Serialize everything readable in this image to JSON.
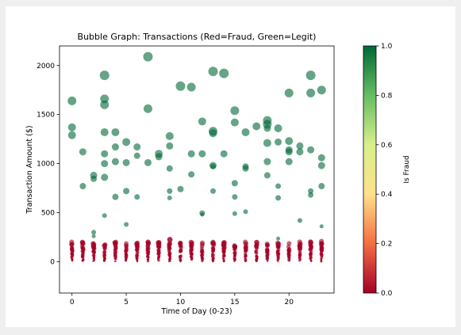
{
  "chart_data": {
    "type": "scatter",
    "title": "Bubble Graph: Transactions (Red=Fraud, Green=Legit)",
    "xlabel": "Time of Day (0-23)",
    "ylabel": "Transaction Amount ($)",
    "xlim": [
      -1.15,
      24.15
    ],
    "ylim": [
      -320,
      2200
    ],
    "xticks": [
      0,
      5,
      10,
      15,
      20
    ],
    "yticks": [
      0,
      500,
      1000,
      1500,
      2000
    ],
    "grid": false,
    "colorbar": {
      "label": "Is Fraud",
      "range": [
        0.0,
        1.0
      ],
      "ticks": [
        0.0,
        0.2,
        0.4,
        0.6,
        0.8,
        1.0
      ],
      "tick_labels": [
        "0.0",
        "0.2",
        "0.4",
        "0.6",
        "0.8",
        "1.0"
      ],
      "colormap": "RdYlGn",
      "colors": [
        "#a50026",
        "#f46d43",
        "#fee08b",
        "#d9ef8b",
        "#66bd63",
        "#006837"
      ],
      "point_alpha": 0.6
    },
    "series": [
      {
        "is_fraud": 1,
        "points": [
          [
            0,
            1640,
            11
          ],
          [
            0,
            1370,
            10
          ],
          [
            0,
            1290,
            10
          ],
          [
            1,
            1120,
            9
          ],
          [
            1,
            770,
            8
          ],
          [
            2,
            880,
            9
          ],
          [
            2,
            845,
            8
          ],
          [
            2,
            300,
            6
          ],
          [
            2,
            260,
            5
          ],
          [
            3,
            1900,
            12
          ],
          [
            3,
            1660,
            11
          ],
          [
            3,
            1600,
            11
          ],
          [
            3,
            1320,
            10
          ],
          [
            3,
            1100,
            9
          ],
          [
            3,
            1000,
            9
          ],
          [
            3,
            860,
            9
          ],
          [
            3,
            470,
            6
          ],
          [
            4,
            1320,
            10
          ],
          [
            4,
            1170,
            9
          ],
          [
            4,
            1020,
            9
          ],
          [
            4,
            660,
            8
          ],
          [
            5,
            1220,
            10
          ],
          [
            5,
            1010,
            9
          ],
          [
            5,
            720,
            8
          ],
          [
            5,
            380,
            6
          ],
          [
            6,
            1170,
            9
          ],
          [
            6,
            1080,
            8
          ],
          [
            6,
            660,
            7
          ],
          [
            7,
            2090,
            12
          ],
          [
            7,
            1560,
            11
          ],
          [
            7,
            1010,
            9
          ],
          [
            8,
            1100,
            10
          ],
          [
            8,
            1070,
            9
          ],
          [
            9,
            1280,
            10
          ],
          [
            9,
            1180,
            9
          ],
          [
            9,
            950,
            8
          ],
          [
            9,
            720,
            7
          ],
          [
            9,
            650,
            6
          ],
          [
            10,
            1790,
            12
          ],
          [
            10,
            740,
            8
          ],
          [
            11,
            1780,
            11
          ],
          [
            11,
            1100,
            9
          ],
          [
            11,
            890,
            8
          ],
          [
            12,
            1430,
            10
          ],
          [
            12,
            1100,
            9
          ],
          [
            12,
            495,
            7
          ],
          [
            12,
            480,
            5
          ],
          [
            13,
            1940,
            12
          ],
          [
            13,
            1330,
            11
          ],
          [
            13,
            1310,
            10
          ],
          [
            13,
            980,
            9
          ],
          [
            13,
            970,
            7
          ],
          [
            13,
            720,
            7
          ],
          [
            14,
            1920,
            12
          ],
          [
            14,
            1100,
            9
          ],
          [
            15,
            1540,
            11
          ],
          [
            15,
            1420,
            10
          ],
          [
            15,
            800,
            8
          ],
          [
            15,
            660,
            7
          ],
          [
            15,
            490,
            6
          ],
          [
            16,
            1320,
            10
          ],
          [
            16,
            970,
            8
          ],
          [
            16,
            950,
            8
          ],
          [
            16,
            510,
            6
          ],
          [
            17,
            1380,
            10
          ],
          [
            18,
            1440,
            11
          ],
          [
            18,
            1400,
            11
          ],
          [
            18,
            1210,
            10
          ],
          [
            18,
            1020,
            9
          ],
          [
            18,
            880,
            8
          ],
          [
            18,
            1360,
            9
          ],
          [
            19,
            1360,
            10
          ],
          [
            19,
            1220,
            9
          ],
          [
            19,
            770,
            7
          ],
          [
            19,
            650,
            7
          ],
          [
            19,
            235,
            5
          ],
          [
            20,
            1720,
            11
          ],
          [
            20,
            1230,
            10
          ],
          [
            20,
            1140,
            9
          ],
          [
            20,
            1120,
            9
          ],
          [
            20,
            1020,
            9
          ],
          [
            21,
            1180,
            9
          ],
          [
            21,
            1120,
            9
          ],
          [
            21,
            420,
            6
          ],
          [
            22,
            1900,
            12
          ],
          [
            22,
            1720,
            11
          ],
          [
            22,
            1140,
            9
          ],
          [
            22,
            720,
            7
          ],
          [
            22,
            680,
            7
          ],
          [
            23,
            1750,
            11
          ],
          [
            23,
            1060,
            9
          ],
          [
            23,
            980,
            9
          ],
          [
            23,
            770,
            8
          ],
          [
            23,
            360,
            5
          ]
        ]
      },
      {
        "is_fraud": 0,
        "points": []
      }
    ]
  }
}
